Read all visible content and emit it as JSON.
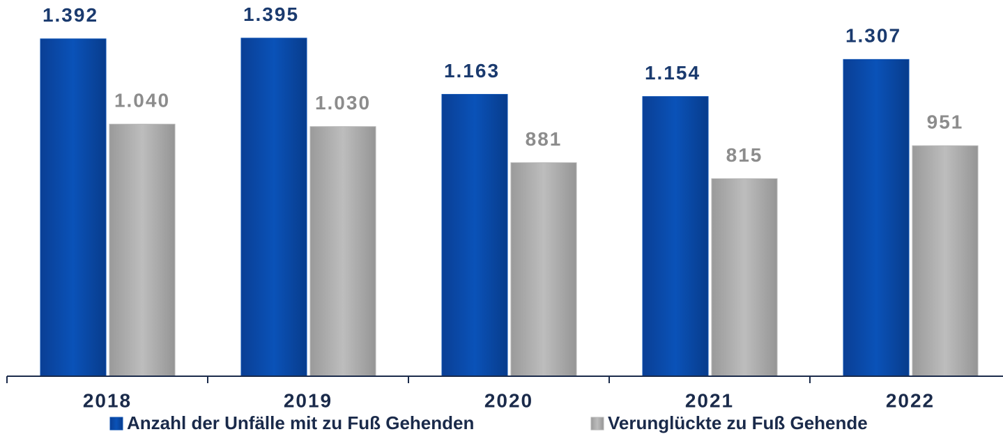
{
  "chart_data": {
    "type": "bar",
    "categories": [
      "2018",
      "2019",
      "2020",
      "2021",
      "2022"
    ],
    "series": [
      {
        "name": "Anzahl der Unfälle mit zu Fuß Gehenden",
        "color": "#0a4fb0",
        "values": [
          1392,
          1395,
          1163,
          1154,
          1307
        ],
        "value_labels": [
          "1.392",
          "1.395",
          "1.163",
          "1.154",
          "1.307"
        ]
      },
      {
        "name": "Verunglückte zu Fuß Gehende",
        "color": "#b5b5b5",
        "values": [
          1040,
          1030,
          881,
          815,
          951
        ],
        "value_labels": [
          "1.040",
          "1.030",
          "881",
          "815",
          "951"
        ]
      }
    ],
    "ylim": [
      0,
      1400
    ],
    "legend": "bottom"
  }
}
